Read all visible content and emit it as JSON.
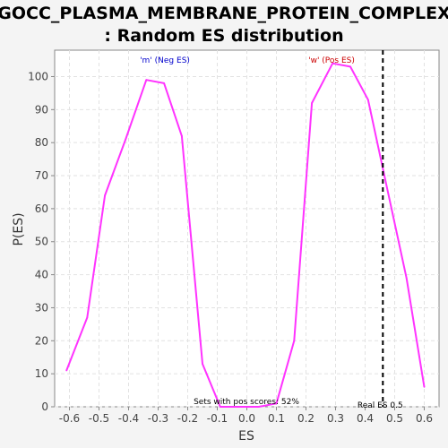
{
  "chart_data": {
    "type": "line",
    "title_line1": "GOCC_PLASMA_MEMBRANE_PROTEIN_COMPLEX",
    "title_line2": ": Random ES distribution",
    "xlabel": "ES",
    "ylabel": "P(ES)",
    "xlim": [
      -0.65,
      0.65
    ],
    "ylim": [
      0,
      108
    ],
    "xticks": [
      "-0.6",
      "-0.5",
      "-0.4",
      "-0.3",
      "-0.2",
      "-0.1",
      "0.0",
      "0.1",
      "0.2",
      "0.3",
      "0.4",
      "0.5",
      "0.6"
    ],
    "yticks": [
      "0",
      "10",
      "20",
      "30",
      "40",
      "50",
      "60",
      "70",
      "80",
      "90",
      "100"
    ],
    "grid": true,
    "series": [
      {
        "color": "#ff33ff",
        "x": [
          -0.61,
          -0.54,
          -0.48,
          -0.41,
          -0.34,
          -0.28,
          -0.22,
          -0.15,
          -0.09,
          -0.03,
          0.04,
          0.1,
          0.16,
          0.22,
          0.29,
          0.35,
          0.41,
          0.47,
          0.54,
          0.6
        ],
        "y": [
          11,
          27,
          64,
          81,
          99,
          98,
          82,
          13,
          0,
          0,
          0,
          1,
          20,
          92,
          104,
          103,
          93,
          68,
          39,
          6
        ]
      }
    ],
    "real_es": 0.46,
    "real_es_label": "Real ES 0.5",
    "neg_label": "'m' (Neg ES)",
    "neg_color": "#0000cc",
    "pos_label": "'w' (Pos ES)",
    "pos_color": "#cc0000",
    "footer_label": "Sets with pos scores: 52%"
  }
}
